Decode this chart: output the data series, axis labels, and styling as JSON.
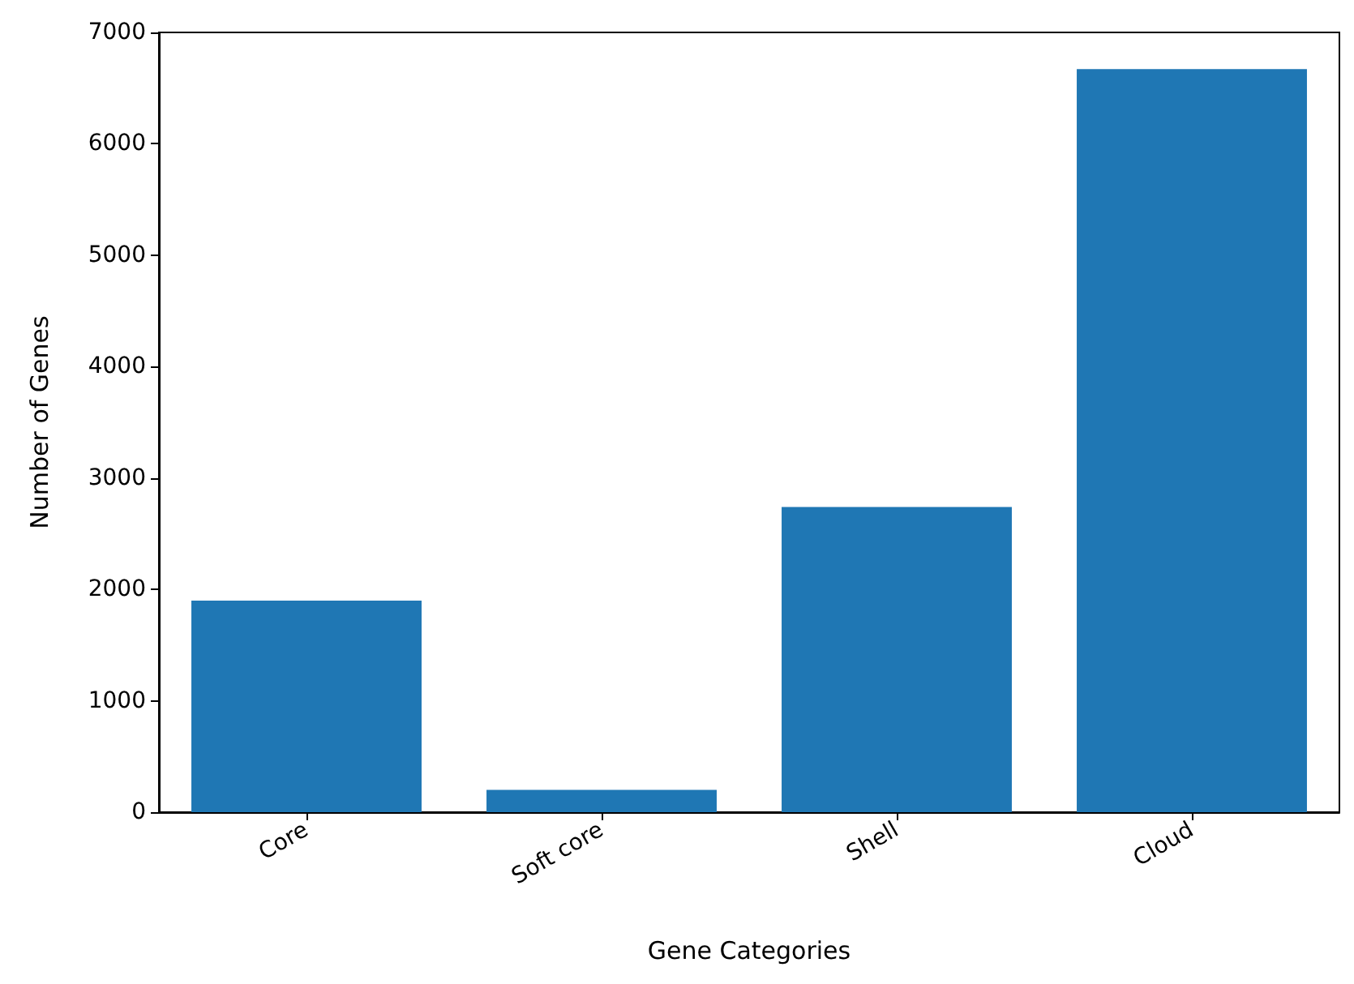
{
  "chart_data": {
    "type": "bar",
    "xlabel": "Gene Categories",
    "ylabel": "Number of Genes",
    "categories": [
      "Core",
      "Soft core",
      "Shell",
      "Cloud"
    ],
    "values": [
      1900,
      200,
      2740,
      6670
    ],
    "color": "#1f77b4",
    "ylim": [
      0,
      7000
    ],
    "yticks": [
      0,
      1000,
      2000,
      3000,
      4000,
      5000,
      6000,
      7000
    ],
    "grid": false
  }
}
